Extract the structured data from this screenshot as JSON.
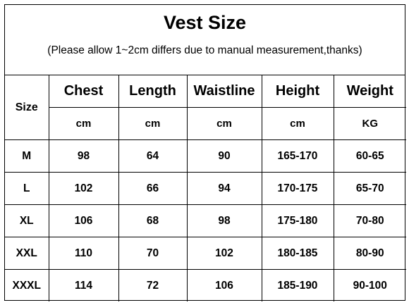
{
  "title": "Vest Size",
  "subtitle": "(Please allow 1~2cm differs due to manual measurement,thanks)",
  "table": {
    "size_header": "Size",
    "columns": [
      {
        "name": "Chest",
        "unit": "cm"
      },
      {
        "name": "Length",
        "unit": "cm"
      },
      {
        "name": "Waistline",
        "unit": "cm"
      },
      {
        "name": "Height",
        "unit": "cm"
      },
      {
        "name": "Weight",
        "unit": "KG"
      }
    ],
    "rows": [
      {
        "size": "M",
        "values": [
          "98",
          "64",
          "90",
          "165-170",
          "60-65"
        ]
      },
      {
        "size": "L",
        "values": [
          "102",
          "66",
          "94",
          "170-175",
          "65-70"
        ]
      },
      {
        "size": "XL",
        "values": [
          "106",
          "68",
          "98",
          "175-180",
          "70-80"
        ]
      },
      {
        "size": "XXL",
        "values": [
          "110",
          "70",
          "102",
          "180-185",
          "80-90"
        ]
      },
      {
        "size": "XXXL",
        "values": [
          "114",
          "72",
          "106",
          "185-190",
          "90-100"
        ]
      }
    ]
  }
}
